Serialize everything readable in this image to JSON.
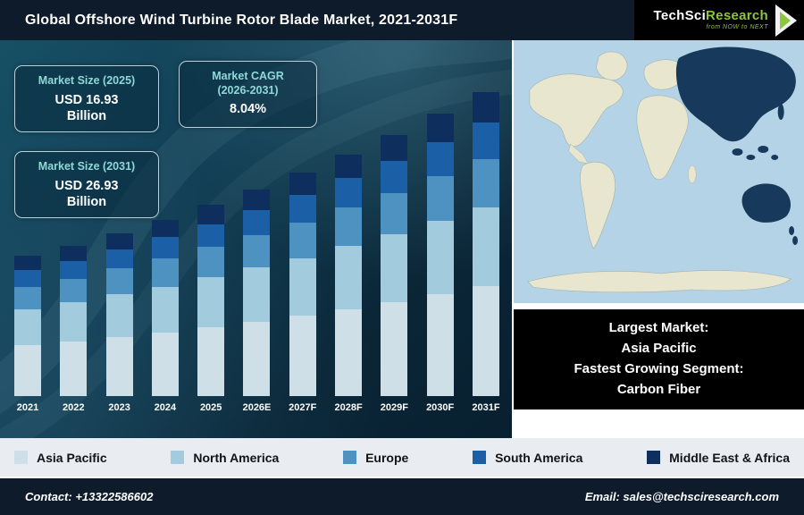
{
  "header": {
    "title": "Global Offshore Wind Turbine Rotor Blade Market, 2021-2031F",
    "logo": {
      "brand": "TechSci",
      "brand2": "Research",
      "tagline": "from NOW to NEXT"
    }
  },
  "stats": {
    "size_2025": {
      "title": "Market Size (2025)",
      "value": "USD 16.93",
      "unit": "Billion"
    },
    "cagr": {
      "title_line1": "Market CAGR",
      "title_line2": "(2026-2031)",
      "value": "8.04%"
    },
    "size_2031": {
      "title": "Market Size (2031)",
      "value": "USD 26.93",
      "unit": "Billion"
    }
  },
  "chart_data": {
    "type": "bar",
    "stacked": true,
    "title": "Global Offshore Wind Turbine Rotor Blade Market, 2021-2031F",
    "unit": "USD Billion",
    "grid": false,
    "legend_position": "bottom",
    "categories": [
      "2021",
      "2022",
      "2023",
      "2024",
      "2025",
      "2026E",
      "2027F",
      "2028F",
      "2029F",
      "2030F",
      "2031F"
    ],
    "series": [
      {
        "name": "Asia Pacific",
        "color": "#cfdfe8",
        "values": [
          4.5,
          4.8,
          5.2,
          5.6,
          6.1,
          6.6,
          7.1,
          7.7,
          8.3,
          9.0,
          9.73
        ]
      },
      {
        "name": "North America",
        "color": "#a3cbde",
        "values": [
          3.2,
          3.5,
          3.8,
          4.1,
          4.43,
          4.8,
          5.1,
          5.6,
          6.0,
          6.5,
          7.0
        ]
      },
      {
        "name": "Europe",
        "color": "#4d92c0",
        "values": [
          2.0,
          2.1,
          2.3,
          2.5,
          2.7,
          2.9,
          3.2,
          3.4,
          3.7,
          4.0,
          4.3
        ]
      },
      {
        "name": "South America",
        "color": "#1b5fa6",
        "values": [
          1.5,
          1.6,
          1.7,
          1.9,
          2.0,
          2.2,
          2.4,
          2.6,
          2.8,
          3.0,
          3.2
        ]
      },
      {
        "name": "Middle East & Africa",
        "color": "#0e2f5e",
        "values": [
          1.2,
          1.3,
          1.4,
          1.5,
          1.7,
          1.8,
          2.0,
          2.1,
          2.3,
          2.5,
          2.7
        ]
      }
    ],
    "totals": [
      12.4,
      13.3,
      14.4,
      15.6,
      16.93,
      18.3,
      19.8,
      21.4,
      23.1,
      25.0,
      26.93
    ]
  },
  "highlight": {
    "line1": "Largest Market:",
    "line2": "Asia Pacific",
    "line3": "Fastest Growing Segment:",
    "line4": "Carbon Fiber"
  },
  "footer": {
    "contact": "Contact: +13322586602",
    "email": "Email: sales@techsciresearch.com"
  },
  "colors": {
    "header_bg": "#0d1b2b",
    "chart_bg_dark": "#082030",
    "chart_bg_light": "#175066",
    "legend_bg": "#e9edf2",
    "stat_title_teal": "#8fd8d8",
    "logo_green": "#8cc63f",
    "map_ocean": "#b5d3e7",
    "map_land": "#e9e6d0",
    "map_highlight": "#16395c"
  }
}
